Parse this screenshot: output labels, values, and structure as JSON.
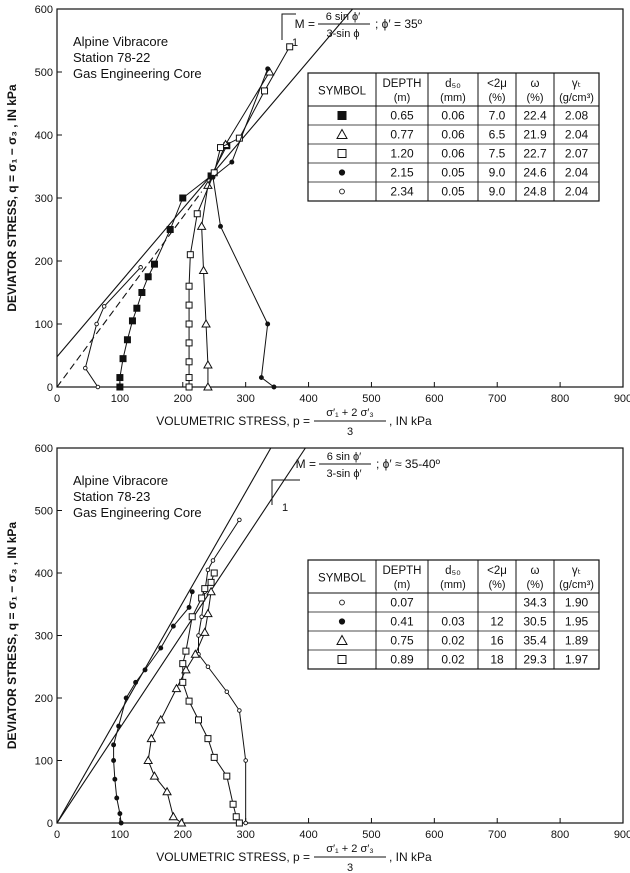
{
  "chart_data": [
    {
      "type": "scatter",
      "xlabel": "VOLUMETRIC STRESS, p = ",
      "xlabel_num": "σ′₁ + 2 σ′₃",
      "xlabel_den": "3",
      "xlabel_unit": ", IN kPa",
      "ylabel": "DEVIATOR STRESS, q = σ₁ − σ₃ , IN kPa",
      "xlim": [
        0,
        900
      ],
      "ylim": [
        0,
        600
      ],
      "xticks": [
        "0",
        "100",
        "200",
        "300",
        "400",
        "500",
        "600",
        "700",
        "800",
        "900"
      ],
      "yticks": [
        "0",
        "100",
        "200",
        "300",
        "400",
        "500",
        "600"
      ],
      "annotation": {
        "line1": "Alpine Vibracore",
        "line2": "Station 78-22",
        "line3": "Gas Engineering Core"
      },
      "formula": {
        "prefix": "M =",
        "num": "6 sin ϕ′",
        "den": "3-sin ϕ",
        "suffix": "; ϕ′ = 35º",
        "slope_label": "1"
      },
      "failure_lines": [
        {
          "style": "solid",
          "p1": [
            0,
            48
          ],
          "p2": [
            470,
            600
          ]
        },
        {
          "style": "dashed",
          "p1": [
            0,
            0
          ],
          "p2": [
            230,
            310
          ]
        }
      ],
      "table": {
        "headers": [
          [
            "SYMBOL"
          ],
          [
            "DEPTH",
            "(m)"
          ],
          [
            "d₅₀",
            "(mm)"
          ],
          [
            "<2μ",
            "(%)"
          ],
          [
            "ω",
            "(%)"
          ],
          [
            "γₜ",
            "(g/cm³)"
          ]
        ],
        "rows": [
          {
            "symbol": "square-filled",
            "cells": [
              "0.65",
              "0.06",
              "7.0",
              "22.4",
              "2.08"
            ]
          },
          {
            "symbol": "triangle-open",
            "cells": [
              "0.77",
              "0.06",
              "6.5",
              "21.9",
              "2.04"
            ]
          },
          {
            "symbol": "square-open",
            "cells": [
              "1.20",
              "0.06",
              "7.5",
              "22.7",
              "2.07"
            ]
          },
          {
            "symbol": "circle-filled",
            "cells": [
              "2.15",
              "0.05",
              "9.0",
              "24.6",
              "2.04"
            ]
          },
          {
            "symbol": "circle-open",
            "cells": [
              "2.34",
              "0.05",
              "9.0",
              "24.8",
              "2.04"
            ]
          }
        ]
      },
      "series": [
        {
          "symbol": "square-filled",
          "points": [
            [
              100,
              0
            ],
            [
              100,
              15
            ],
            [
              105,
              45
            ],
            [
              112,
              75
            ],
            [
              120,
              105
            ],
            [
              127,
              125
            ],
            [
              135,
              150
            ],
            [
              145,
              175
            ],
            [
              155,
              195
            ],
            [
              180,
              250
            ],
            [
              200,
              300
            ],
            [
              245,
              335
            ],
            [
              270,
              383
            ]
          ]
        },
        {
          "symbol": "triangle-open",
          "points": [
            [
              240,
              0
            ],
            [
              240,
              35
            ],
            [
              237,
              100
            ],
            [
              233,
              185
            ],
            [
              230,
              255
            ],
            [
              240,
              320
            ],
            [
              268,
              385
            ],
            [
              338,
              500
            ]
          ]
        },
        {
          "symbol": "square-open",
          "points": [
            [
              210,
              0
            ],
            [
              210,
              15
            ],
            [
              210,
              40
            ],
            [
              210,
              70
            ],
            [
              210,
              100
            ],
            [
              210,
              130
            ],
            [
              210,
              160
            ],
            [
              212,
              210
            ],
            [
              223,
              275
            ],
            [
              250,
              340
            ],
            [
              260,
              380
            ],
            [
              290,
              395
            ],
            [
              330,
              470
            ],
            [
              370,
              540
            ]
          ]
        },
        {
          "symbol": "circle-filled",
          "points": [
            [
              345,
              0
            ],
            [
              325,
              15
            ],
            [
              335,
              100
            ],
            [
              260,
              255
            ],
            [
              248,
              333
            ],
            [
              278,
              357
            ],
            [
              335,
              505
            ]
          ]
        },
        {
          "symbol": "circle-open",
          "points": [
            [
              65,
              0
            ],
            [
              45,
              30
            ],
            [
              63,
              100
            ],
            [
              75,
              128
            ],
            [
              133,
              190
            ]
          ]
        }
      ]
    },
    {
      "type": "scatter",
      "xlabel": "VOLUMETRIC STRESS, p = ",
      "xlabel_num": "σ′₁ + 2 σ′₃",
      "xlabel_den": "3",
      "xlabel_unit": ", IN kPa",
      "ylabel": "DEVIATOR STRESS, q = σ₁ − σ₃ , IN kPa",
      "xlim": [
        0,
        900
      ],
      "ylim": [
        0,
        600
      ],
      "xticks": [
        "0",
        "100",
        "200",
        "300",
        "400",
        "500",
        "600",
        "700",
        "800",
        "900"
      ],
      "yticks": [
        "0",
        "100",
        "200",
        "300",
        "400",
        "500",
        "600"
      ],
      "annotation": {
        "line1": "Alpine Vibracore",
        "line2": "Station 78-23",
        "line3": "Gas Engineering Core"
      },
      "formula": {
        "prefix": "M =",
        "num": "6 sin ϕ′",
        "den": "3-sin ϕ′",
        "suffix": "; ϕ′ ≈ 35-40º",
        "slope_label": "1"
      },
      "failure_lines": [
        {
          "style": "solid",
          "p1": [
            0,
            0
          ],
          "p2": [
            340,
            600
          ]
        },
        {
          "style": "solid",
          "p1": [
            0,
            0
          ],
          "p2": [
            395,
            600
          ]
        }
      ],
      "table": {
        "headers": [
          [
            "SYMBOL"
          ],
          [
            "DEPTH",
            "(m)"
          ],
          [
            "d₅₀",
            "(mm)"
          ],
          [
            "<2μ",
            "(%)"
          ],
          [
            "ω",
            "(%)"
          ],
          [
            "γₜ",
            "(g/cm³)"
          ]
        ],
        "rows": [
          {
            "symbol": "circle-open",
            "cells": [
              "0.07",
              "",
              "",
              "34.3",
              "1.90"
            ]
          },
          {
            "symbol": "circle-filled",
            "cells": [
              "0.41",
              "0.03",
              "12",
              "30.5",
              "1.95"
            ]
          },
          {
            "symbol": "triangle-open",
            "cells": [
              "0.75",
              "0.02",
              "16",
              "35.4",
              "1.89"
            ]
          },
          {
            "symbol": "square-open",
            "cells": [
              "0.89",
              "0.02",
              "18",
              "29.3",
              "1.97"
            ]
          }
        ]
      },
      "series": [
        {
          "symbol": "circle-open",
          "points": [
            [
              300,
              0
            ],
            [
              300,
              100
            ],
            [
              290,
              180
            ],
            [
              270,
              210
            ],
            [
              240,
              250
            ],
            [
              225,
              270
            ],
            [
              225,
              300
            ],
            [
              230,
              330
            ],
            [
              235,
              370
            ],
            [
              240,
              405
            ],
            [
              248,
              420
            ],
            [
              290,
              485
            ]
          ]
        },
        {
          "symbol": "circle-filled",
          "points": [
            [
              102,
              0
            ],
            [
              100,
              15
            ],
            [
              95,
              40
            ],
            [
              92,
              70
            ],
            [
              90,
              100
            ],
            [
              90,
              125
            ],
            [
              98,
              155
            ],
            [
              110,
              200
            ],
            [
              125,
              225
            ],
            [
              140,
              245
            ],
            [
              165,
              280
            ],
            [
              185,
              315
            ],
            [
              210,
              345
            ],
            [
              215,
              370
            ]
          ]
        },
        {
          "symbol": "triangle-open",
          "points": [
            [
              198,
              0
            ],
            [
              185,
              10
            ],
            [
              175,
              50
            ],
            [
              155,
              75
            ],
            [
              145,
              100
            ],
            [
              150,
              135
            ],
            [
              165,
              165
            ],
            [
              190,
              215
            ],
            [
              205,
              245
            ],
            [
              220,
              270
            ],
            [
              235,
              305
            ],
            [
              240,
              335
            ],
            [
              245,
              370
            ]
          ]
        },
        {
          "symbol": "square-open",
          "points": [
            [
              290,
              0
            ],
            [
              285,
              10
            ],
            [
              280,
              30
            ],
            [
              270,
              75
            ],
            [
              250,
              105
            ],
            [
              240,
              135
            ],
            [
              225,
              165
            ],
            [
              210,
              195
            ],
            [
              200,
              225
            ],
            [
              200,
              255
            ],
            [
              205,
              275
            ],
            [
              215,
              330
            ],
            [
              230,
              360
            ],
            [
              235,
              375
            ],
            [
              245,
              385
            ],
            [
              250,
              400
            ]
          ]
        }
      ]
    }
  ]
}
